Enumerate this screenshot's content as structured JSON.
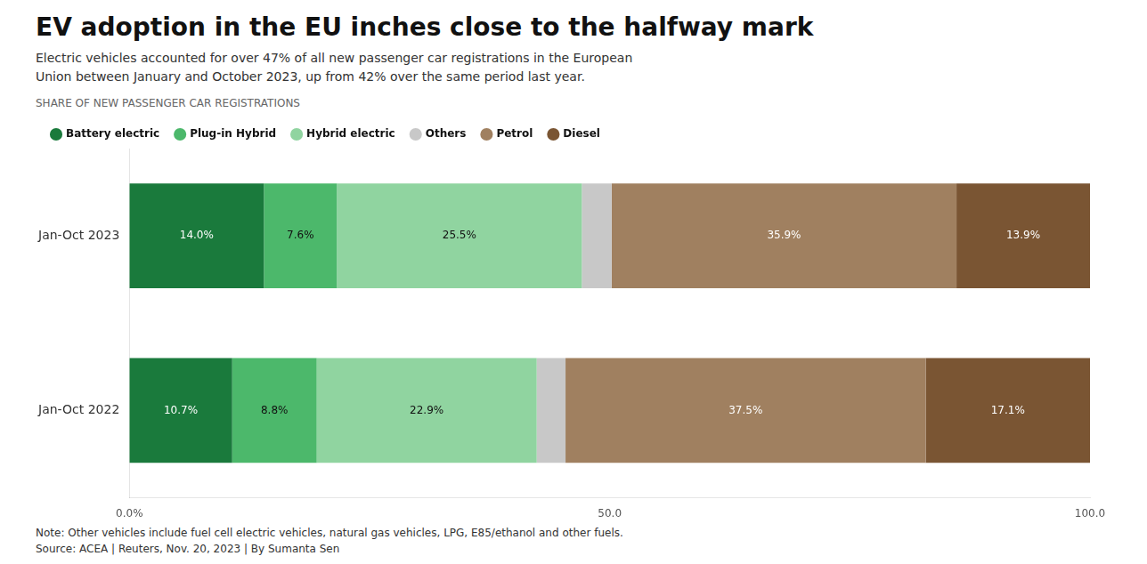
{
  "chart_data": {
    "type": "bar",
    "orientation": "horizontal",
    "stacked": true,
    "title": "EV adoption in the EU inches close to the halfway mark",
    "subtitle": "Electric vehicles accounted for over 47% of all new passenger car registrations in the European\nUnion between January and October 2023, up from 42% over the same period last year.",
    "annotations": [
      "SHARE OF NEW PASSENGER CAR REGISTRATIONS",
      "Note: Other vehicles include fuel cell electric vehicles, natural gas vehicles, LPG, E85/ethanol and other fuels.",
      "Source: ACEA | Reuters, Nov. 20, 2023 | By Sumanta Sen"
    ],
    "categories": [
      "Jan-Oct 2023",
      "Jan-Oct 2022"
    ],
    "series": [
      {
        "name": "Battery electric",
        "color": "#1a7a3c",
        "values": [
          14.0,
          10.7
        ],
        "value_labels": [
          "14.0%",
          "10.7%"
        ]
      },
      {
        "name": "Plug-in Hybrid",
        "color": "#4cb86b",
        "values": [
          7.6,
          8.8
        ],
        "value_labels": [
          "7.6%",
          "8.8%"
        ]
      },
      {
        "name": "Hybrid electric",
        "color": "#90d4a0",
        "values": [
          25.5,
          22.9
        ],
        "value_labels": [
          "25.5%",
          "22.9%"
        ]
      },
      {
        "name": "Others",
        "color": "#c8c8c8",
        "values": [
          3.1,
          3.0
        ],
        "data_labels": false
      },
      {
        "name": "Petrol",
        "color": "#a08060",
        "values": [
          35.9,
          37.5
        ],
        "value_labels": [
          "35.9%",
          "37.5%"
        ]
      },
      {
        "name": "Diesel",
        "color": "#7a5533",
        "values": [
          13.9,
          17.1
        ],
        "value_labels": [
          "13.9%",
          "17.1%"
        ]
      }
    ],
    "data_labels": true,
    "xlim": [
      0,
      100
    ],
    "xticks": [
      {
        "value": 0,
        "label": "0.0%"
      },
      {
        "value": 50,
        "label": "50.0"
      },
      {
        "value": 100,
        "label": "100.0"
      }
    ],
    "grid": false,
    "legend": "top"
  }
}
